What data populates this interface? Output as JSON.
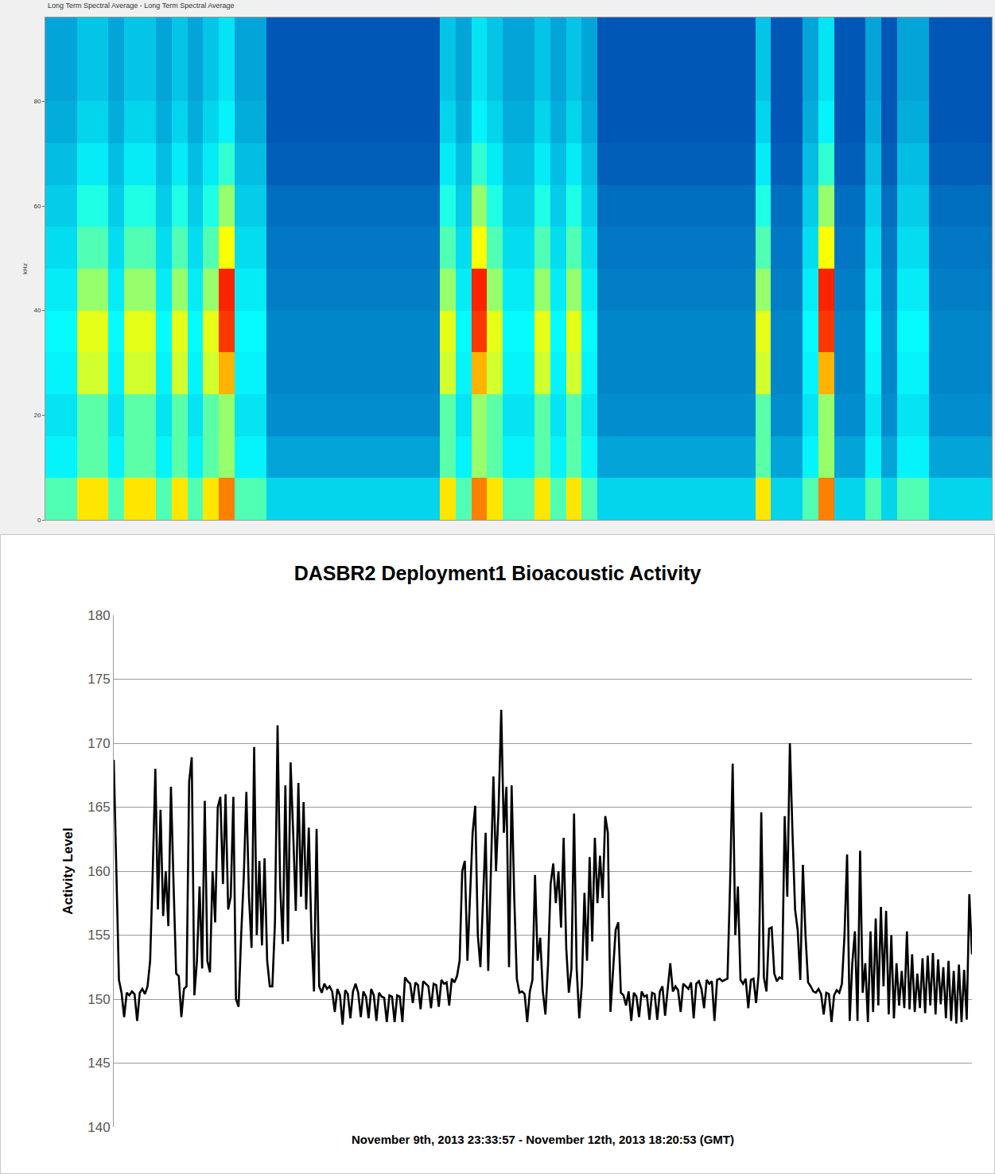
{
  "chart_data": [
    {
      "type": "heatmap",
      "title": "Long Term Spectral Average - Long Term Spectral Average",
      "y_label": "kHz",
      "y": [
        4,
        12,
        20,
        28,
        36,
        44,
        52,
        60,
        68,
        76,
        84,
        92
      ],
      "cells": [
        [
          4.5,
          4.5,
          6.5,
          6.5,
          4.5,
          6.5,
          6.5,
          4.5,
          6.5,
          4.5,
          6.5,
          7.5,
          4.5,
          4.5,
          3.2,
          3.2,
          3.2,
          3.2,
          3.2,
          3.2,
          3.2,
          3.2,
          3.2,
          3.2,
          3.2,
          6.5,
          4.5,
          7.5,
          6.5,
          4.5,
          4.5,
          6.5,
          4.5,
          6.5,
          4.5,
          3.2,
          3.2,
          3.2,
          3.2,
          3.2,
          3.2,
          3.2,
          3.2,
          3.2,
          3.2,
          6.5,
          3.2,
          3.2,
          4.5,
          7.5,
          3.2,
          3.2,
          4.5,
          3.2,
          4.5,
          4.5,
          3.2,
          3.2,
          3.2,
          3.2
        ],
        [
          3.6,
          3.6,
          4.6,
          4.6,
          3.6,
          4.6,
          4.6,
          3.6,
          4.6,
          3.6,
          4.6,
          5.2,
          3.6,
          3.6,
          2.6,
          2.6,
          2.6,
          2.6,
          2.6,
          2.6,
          2.6,
          2.6,
          2.6,
          2.6,
          2.6,
          4.6,
          3.6,
          5.2,
          4.6,
          3.6,
          3.6,
          4.6,
          3.6,
          4.6,
          3.6,
          2.6,
          2.6,
          2.6,
          2.6,
          2.6,
          2.6,
          2.6,
          2.6,
          2.6,
          2.6,
          4.6,
          2.6,
          2.6,
          3.6,
          5.2,
          2.6,
          2.6,
          3.6,
          2.6,
          3.6,
          3.6,
          2.6,
          2.6,
          2.6,
          2.6
        ],
        [
          3.4,
          3.4,
          4.6,
          4.6,
          3.4,
          4.6,
          4.6,
          3.4,
          4.6,
          3.4,
          4.6,
          5.2,
          3.4,
          3.4,
          2.3,
          2.3,
          2.3,
          2.3,
          2.3,
          2.3,
          2.3,
          2.3,
          2.3,
          2.3,
          2.3,
          4.6,
          3.4,
          5.2,
          4.6,
          3.4,
          3.4,
          4.6,
          3.4,
          4.6,
          3.4,
          2.3,
          2.3,
          2.3,
          2.3,
          2.3,
          2.3,
          2.3,
          2.3,
          2.3,
          2.3,
          4.6,
          2.3,
          2.3,
          3.4,
          5.2,
          2.3,
          2.3,
          3.4,
          2.3,
          3.4,
          3.4,
          2.3,
          2.3,
          2.3,
          2.3
        ],
        [
          3.6,
          3.6,
          5.8,
          5.8,
          3.6,
          5.8,
          5.8,
          3.6,
          5.8,
          3.6,
          5.8,
          7.0,
          3.6,
          3.6,
          2.2,
          2.2,
          2.2,
          2.2,
          2.2,
          2.2,
          2.2,
          2.2,
          2.2,
          2.2,
          2.2,
          5.8,
          3.6,
          7.0,
          5.8,
          3.6,
          3.6,
          5.8,
          3.6,
          5.8,
          3.6,
          2.2,
          2.2,
          2.2,
          2.2,
          2.2,
          2.2,
          2.2,
          2.2,
          2.2,
          2.2,
          5.8,
          2.2,
          2.2,
          3.6,
          7.0,
          2.2,
          2.2,
          3.6,
          2.2,
          3.6,
          3.6,
          2.2,
          2.2,
          2.2,
          2.2
        ],
        [
          3.7,
          3.7,
          6.0,
          6.0,
          3.7,
          6.0,
          6.0,
          3.7,
          6.0,
          3.7,
          6.0,
          8.2,
          3.7,
          3.7,
          2.2,
          2.2,
          2.2,
          2.2,
          2.2,
          2.2,
          2.2,
          2.2,
          2.2,
          2.2,
          2.2,
          6.0,
          3.7,
          8.2,
          6.0,
          3.7,
          3.7,
          6.0,
          3.7,
          6.0,
          3.7,
          2.2,
          2.2,
          2.2,
          2.2,
          2.2,
          2.2,
          2.2,
          2.2,
          2.2,
          2.2,
          6.0,
          2.2,
          2.2,
          3.7,
          8.2,
          2.2,
          2.2,
          3.7,
          2.2,
          3.7,
          3.7,
          2.2,
          2.2,
          2.2,
          2.2
        ],
        [
          3.5,
          3.5,
          5.2,
          5.2,
          3.5,
          5.2,
          5.2,
          3.5,
          5.2,
          3.5,
          5.2,
          8.4,
          3.5,
          3.5,
          2.1,
          2.1,
          2.1,
          2.1,
          2.1,
          2.1,
          2.1,
          2.1,
          2.1,
          2.1,
          2.1,
          5.2,
          3.5,
          8.4,
          5.2,
          3.5,
          3.5,
          5.2,
          3.5,
          5.2,
          3.5,
          2.1,
          2.1,
          2.1,
          2.1,
          2.1,
          2.1,
          2.1,
          2.1,
          2.1,
          2.1,
          5.2,
          2.1,
          2.1,
          3.5,
          8.4,
          2.1,
          2.1,
          3.5,
          2.1,
          3.5,
          3.5,
          2.1,
          2.1,
          2.1,
          2.1
        ],
        [
          3.3,
          3.3,
          4.5,
          4.5,
          3.3,
          4.5,
          4.5,
          3.3,
          4.5,
          3.3,
          4.5,
          6.2,
          3.3,
          3.3,
          2.0,
          2.0,
          2.0,
          2.0,
          2.0,
          2.0,
          2.0,
          2.0,
          2.0,
          2.0,
          2.0,
          4.5,
          3.3,
          6.2,
          4.5,
          3.3,
          3.3,
          4.5,
          3.3,
          4.5,
          3.3,
          2.0,
          2.0,
          2.0,
          2.0,
          2.0,
          2.0,
          2.0,
          2.0,
          2.0,
          2.0,
          4.5,
          2.0,
          2.0,
          3.3,
          6.2,
          2.0,
          2.0,
          3.3,
          2.0,
          3.3,
          3.3,
          2.0,
          2.0,
          2.0,
          2.0
        ],
        [
          3.1,
          3.1,
          4.0,
          4.0,
          3.1,
          4.0,
          4.0,
          3.1,
          4.0,
          3.1,
          4.0,
          5.2,
          3.1,
          3.1,
          1.9,
          1.9,
          1.9,
          1.9,
          1.9,
          1.9,
          1.9,
          1.9,
          1.9,
          1.9,
          1.9,
          4.0,
          3.1,
          5.2,
          4.0,
          3.1,
          3.1,
          4.0,
          3.1,
          4.0,
          3.1,
          1.9,
          1.9,
          1.9,
          1.9,
          1.9,
          1.9,
          1.9,
          1.9,
          1.9,
          1.9,
          4.0,
          1.9,
          1.9,
          3.1,
          5.2,
          1.9,
          1.9,
          3.1,
          1.9,
          3.1,
          3.1,
          1.9,
          1.9,
          1.9,
          1.9
        ],
        [
          2.9,
          2.9,
          3.5,
          3.5,
          2.9,
          3.5,
          3.5,
          2.9,
          3.5,
          2.9,
          3.5,
          4.2,
          2.9,
          2.9,
          1.7,
          1.7,
          1.7,
          1.7,
          1.7,
          1.7,
          1.7,
          1.7,
          1.7,
          1.7,
          1.7,
          3.5,
          2.9,
          4.2,
          3.5,
          2.9,
          2.9,
          3.5,
          2.9,
          3.5,
          2.9,
          1.7,
          1.7,
          1.7,
          1.7,
          1.7,
          1.7,
          1.7,
          1.7,
          1.7,
          1.7,
          3.5,
          1.7,
          1.7,
          2.9,
          4.2,
          1.7,
          1.7,
          2.9,
          1.7,
          2.9,
          2.9,
          1.7,
          1.7,
          1.7,
          1.7
        ],
        [
          2.7,
          2.7,
          3.2,
          3.2,
          2.7,
          3.2,
          3.2,
          2.7,
          3.2,
          2.7,
          3.2,
          3.6,
          2.7,
          2.7,
          1.6,
          1.6,
          1.6,
          1.6,
          1.6,
          1.6,
          1.6,
          1.6,
          1.6,
          1.6,
          1.6,
          3.2,
          2.7,
          3.6,
          3.2,
          2.7,
          2.7,
          3.2,
          2.7,
          3.2,
          2.7,
          1.6,
          1.6,
          1.6,
          1.6,
          1.6,
          1.6,
          1.6,
          1.6,
          1.6,
          1.6,
          3.2,
          1.6,
          1.6,
          2.7,
          3.6,
          1.6,
          1.6,
          2.7,
          1.6,
          2.7,
          2.7,
          1.6,
          1.6,
          1.6,
          1.6
        ],
        [
          2.6,
          2.6,
          3.0,
          3.0,
          2.6,
          3.0,
          3.0,
          2.6,
          3.0,
          2.6,
          3.0,
          3.4,
          2.6,
          2.6,
          1.6,
          1.6,
          1.6,
          1.6,
          1.6,
          1.6,
          1.6,
          1.6,
          1.6,
          1.6,
          1.6,
          3.0,
          2.6,
          3.4,
          3.0,
          2.6,
          2.6,
          3.0,
          2.6,
          3.0,
          2.6,
          1.6,
          1.6,
          1.6,
          1.6,
          1.6,
          1.6,
          1.6,
          1.6,
          1.6,
          1.6,
          3.0,
          1.6,
          1.6,
          2.6,
          3.4,
          1.6,
          1.6,
          2.6,
          1.6,
          2.6,
          2.6,
          1.6,
          1.6,
          1.6,
          1.6
        ],
        [
          2.6,
          2.6,
          3.0,
          3.0,
          2.6,
          3.0,
          3.0,
          2.6,
          3.0,
          2.6,
          3.0,
          3.4,
          2.6,
          2.6,
          1.6,
          1.6,
          1.6,
          1.6,
          1.6,
          1.6,
          1.6,
          1.6,
          1.6,
          1.6,
          1.6,
          3.0,
          2.6,
          3.4,
          3.0,
          2.6,
          2.6,
          3.0,
          2.6,
          3.0,
          2.6,
          1.6,
          1.6,
          1.6,
          1.6,
          1.6,
          1.6,
          1.6,
          1.6,
          1.6,
          1.6,
          3.0,
          1.6,
          1.6,
          2.6,
          3.4,
          1.6,
          1.6,
          2.6,
          1.6,
          2.6,
          2.6,
          1.6,
          1.6,
          1.6,
          1.6
        ]
      ],
      "zlim": [
        0,
        10
      ],
      "color": "Jet",
      "ylim": [
        0,
        96
      ],
      "yticks": [
        0,
        20,
        40,
        60,
        80
      ],
      "grid": false,
      "tick_labels": "y"
    },
    {
      "type": "line",
      "title": "DASBR2 Deployment1 Bioacoustic Activity",
      "x_label": "November 9th, 2013 23:33:57 - November 12th, 2013 18:20:53 (GMT)",
      "y_label": "Activity Level",
      "values": [
        168.7,
        159.5,
        151.5,
        150.5,
        148.6,
        150.5,
        150.3,
        150.6,
        150.4,
        148.3,
        150.5,
        150.8,
        150.4,
        151,
        153,
        160,
        168,
        157,
        164.8,
        156.5,
        160,
        155.7,
        166.6,
        159,
        152,
        151.8,
        148.6,
        150.8,
        151,
        167,
        168.9,
        150.3,
        153,
        158.8,
        152.4,
        165.5,
        153,
        152.1,
        160,
        156,
        165,
        165.8,
        159,
        166,
        157,
        158,
        165.8,
        150,
        149.4,
        155,
        159.5,
        166.2,
        158,
        154,
        169.7,
        155,
        160.8,
        154.2,
        161,
        153,
        151,
        151,
        156,
        171.4,
        158.8,
        154.3,
        166.7,
        154.5,
        168.5,
        163,
        156.9,
        166.9,
        158,
        165.4,
        157,
        163.4,
        155.3,
        150.6,
        163.3,
        151,
        150.5,
        151.2,
        150.8,
        151,
        150.6,
        149,
        150.8,
        150.3,
        148,
        150.7,
        150.4,
        148.5,
        150.6,
        151.2,
        150.5,
        148.6,
        150.6,
        150.2,
        148.5,
        150.8,
        150.3,
        148.3,
        150.5,
        150.2,
        150.1,
        148.2,
        150.3,
        150.2,
        148.2,
        150.3,
        150.2,
        148.2,
        151.7,
        151.4,
        151.2,
        149.7,
        151.3,
        151.1,
        149.2,
        151.4,
        151.2,
        151.0,
        149.3,
        151.2,
        151.1,
        149.4,
        151.5,
        151.2,
        151.3,
        149.5,
        151.6,
        151.3,
        151.8,
        153,
        160,
        160.8,
        153,
        158.3,
        163,
        165.1,
        155,
        152.5,
        157.5,
        163,
        152.2,
        160,
        167.4,
        160,
        165,
        172.6,
        163,
        166.6,
        152.5,
        166.7,
        158,
        151.6,
        150.5,
        150.6,
        150.4,
        148.2,
        150.6,
        151.5,
        159.7,
        153,
        154.8,
        150.6,
        148.8,
        152.7,
        159,
        160.6,
        157.5,
        160,
        155.6,
        162.6,
        154,
        150.5,
        152.4,
        164.5,
        152.4,
        148.5,
        151.1,
        158.3,
        153,
        161.1,
        154.5,
        162.6,
        157.5,
        161.2,
        157.9,
        164.3,
        163,
        149,
        152,
        155.4,
        156,
        150.5,
        150.3,
        149.5,
        150.6,
        148.3,
        150.5,
        150.2,
        148.6,
        150.6,
        150.2,
        150.3,
        148.4,
        150.5,
        150.4,
        148.4,
        150.6,
        151,
        148.7,
        151,
        152.8,
        150.6,
        151,
        150.7,
        149,
        151.2,
        151,
        150.8,
        151.3,
        148.5,
        151.2,
        151.4,
        150.8,
        149.3,
        151.5,
        151.2,
        151.4,
        148.3,
        151.5,
        151.6,
        151.4,
        151.5,
        151.6,
        159,
        168.4,
        155,
        158.8,
        151.5,
        151.2,
        151.6,
        149.3,
        151.5,
        151.6,
        149.7,
        152,
        164.6,
        151.7,
        150.6,
        155.5,
        155.6,
        152,
        151.4,
        151.7,
        151.6,
        164.3,
        158,
        170,
        163,
        157,
        155.4,
        151.5,
        160.5,
        155,
        151.3,
        151,
        150.6,
        150.5,
        150.8,
        150.4,
        148.8,
        150.5,
        150.4,
        148.2,
        150.3,
        150.7,
        150.5,
        151.2,
        155,
        161.3,
        148.3,
        152.8,
        155.3,
        148.3,
        161.6,
        150.5,
        152.8,
        148.2,
        155.3,
        149,
        156.3,
        149.5,
        157.2,
        151,
        156.9,
        148.8,
        155,
        148.5,
        152.8,
        149.5,
        152.2,
        149.3,
        155.3,
        149.2,
        153.5,
        149,
        152,
        149.3,
        153.2,
        148.9,
        153.4,
        149.5,
        153.6,
        148.8,
        153.1,
        149.6,
        152.5,
        148.5,
        153,
        148.3,
        152.2,
        148.1,
        152.7,
        148.2,
        152.3,
        148.4,
        158.2,
        153.5
      ],
      "color": "#000000",
      "ylim": [
        140,
        180
      ],
      "yticks": [
        140,
        145,
        150,
        155,
        160,
        165,
        170,
        175,
        180
      ],
      "grid": true,
      "tick_labels": "y"
    }
  ]
}
